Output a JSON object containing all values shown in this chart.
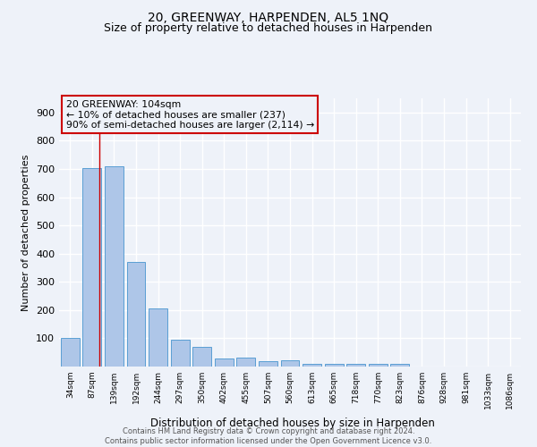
{
  "title": "20, GREENWAY, HARPENDEN, AL5 1NQ",
  "subtitle": "Size of property relative to detached houses in Harpenden",
  "xlabel": "Distribution of detached houses by size in Harpenden",
  "ylabel": "Number of detached properties",
  "bar_labels": [
    "34sqm",
    "87sqm",
    "139sqm",
    "192sqm",
    "244sqm",
    "297sqm",
    "350sqm",
    "402sqm",
    "455sqm",
    "507sqm",
    "560sqm",
    "613sqm",
    "665sqm",
    "718sqm",
    "770sqm",
    "823sqm",
    "876sqm",
    "928sqm",
    "981sqm",
    "1033sqm",
    "1086sqm"
  ],
  "bar_values": [
    100,
    703,
    708,
    371,
    205,
    96,
    71,
    28,
    32,
    20,
    22,
    10,
    8,
    8,
    10,
    8,
    0,
    0,
    0,
    0,
    0
  ],
  "bar_color": "#aec6e8",
  "bar_edge_color": "#5a9fd4",
  "property_line_x": 1.32,
  "annotation_line1": "20 GREENWAY: 104sqm",
  "annotation_line2": "← 10% of detached houses are smaller (237)",
  "annotation_line3": "90% of semi-detached houses are larger (2,114) →",
  "annotation_box_color": "#cc0000",
  "ylim": [
    0,
    950
  ],
  "yticks": [
    0,
    100,
    200,
    300,
    400,
    500,
    600,
    700,
    800,
    900
  ],
  "footer": "Contains HM Land Registry data © Crown copyright and database right 2024.\nContains public sector information licensed under the Open Government Licence v3.0.",
  "background_color": "#eef2f9",
  "grid_color": "#ffffff",
  "title_fontsize": 10,
  "subtitle_fontsize": 9
}
